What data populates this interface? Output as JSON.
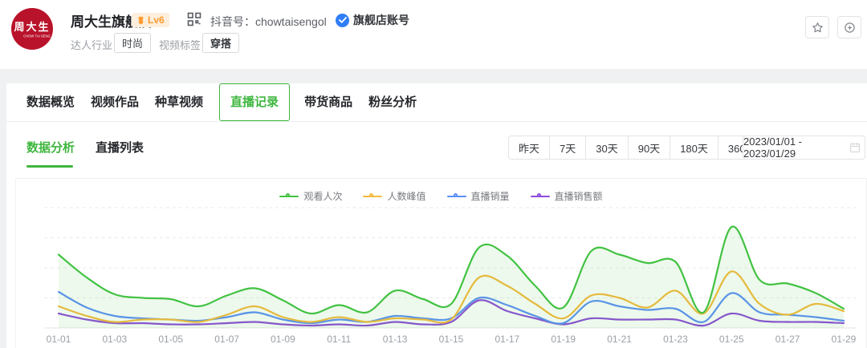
{
  "theme": {
    "accent_green": "#3eb63e",
    "brand_red": "#b9122b",
    "badge_orange": "#ff9b2e",
    "badge_orange_bg": "#fdeedd",
    "verified_blue": "#2f7ef7"
  },
  "header": {
    "logo_text": "周大生",
    "logo_subtext": "CHOW TAI SENG",
    "account_name": "周大生旗舰店",
    "level_badge": "Lv6",
    "douyin_id_label": "抖音号：",
    "douyin_id": "chowtaisengol",
    "verified_badge": "旗舰店账号",
    "industry_label": "达人行业",
    "industry_tag": "时尚",
    "video_tag_label": "视频标签",
    "video_tag": "穿搭",
    "icons": [
      "qr-code",
      "verified-check",
      "star",
      "target-plus"
    ]
  },
  "tabs": {
    "items": [
      {
        "label": "数据概览",
        "active": false
      },
      {
        "label": "视频作品",
        "active": false
      },
      {
        "label": "种草视频",
        "active": false
      },
      {
        "label": "直播记录",
        "active": true
      },
      {
        "label": "带货商品",
        "active": false
      },
      {
        "label": "粉丝分析",
        "active": false
      }
    ]
  },
  "subtabs": {
    "items": [
      {
        "label": "数据分析",
        "active": true
      },
      {
        "label": "直播列表",
        "active": false
      }
    ]
  },
  "filters": {
    "quick_ranges": [
      "昨天",
      "7天",
      "30天",
      "90天",
      "180天",
      "360天"
    ],
    "range_text": "2023/01/01  - 2023/01/29",
    "calendar_icon": "calendar"
  },
  "chart_data": {
    "type": "line",
    "title": "",
    "x": [
      "01-01",
      "01-02",
      "01-03",
      "01-04",
      "01-05",
      "01-06",
      "01-07",
      "01-08",
      "01-09",
      "01-10",
      "01-11",
      "01-12",
      "01-13",
      "01-14",
      "01-15",
      "01-16",
      "01-17",
      "01-18",
      "01-19",
      "01-20",
      "01-21",
      "01-22",
      "01-23",
      "01-24",
      "01-25",
      "01-26",
      "01-27",
      "01-28",
      "01-29"
    ],
    "x_tick_labels": [
      "01-01",
      "01-03",
      "01-05",
      "01-07",
      "01-09",
      "01-11",
      "01-13",
      "01-15",
      "01-17",
      "01-19",
      "01-21",
      "01-23",
      "01-25",
      "01-27",
      "01-29"
    ],
    "y_axis": {
      "visible": false,
      "range": [
        0,
        100
      ],
      "unit": "relative % of plot height (no tick labels shown)"
    },
    "grid": "horizontal-dashed",
    "legend_position": "top-center",
    "series": [
      {
        "name": "观看人次",
        "color": "#42c242",
        "area": true,
        "area_fill": "rgba(82,196,70,0.10)",
        "values": [
          61,
          42,
          28,
          25,
          24,
          18,
          27,
          33,
          23,
          12,
          19,
          13,
          31,
          24,
          20,
          67,
          60,
          35,
          17,
          64,
          61,
          54,
          55,
          13,
          84,
          40,
          37,
          29,
          16
        ]
      },
      {
        "name": "人数峰值",
        "color": "#f6b93d",
        "area": false,
        "area_fill": "",
        "values": [
          18,
          10,
          5,
          7,
          7,
          5,
          11,
          18,
          9,
          5,
          9,
          5,
          8,
          7,
          7,
          42,
          35,
          20,
          8,
          27,
          25,
          17,
          31,
          12,
          47,
          20,
          11,
          20,
          14
        ]
      },
      {
        "name": "直播销量",
        "color": "#5b8ff9",
        "area": false,
        "area_fill": "",
        "values": [
          30,
          17,
          10,
          8,
          7,
          6,
          9,
          13,
          7,
          4,
          7,
          5,
          10,
          8,
          8,
          25,
          19,
          10,
          4,
          22,
          18,
          15,
          16,
          5,
          29,
          13,
          11,
          9,
          6
        ]
      },
      {
        "name": "直播销售额",
        "color": "#8d4bdb",
        "area": false,
        "area_fill": "",
        "values": [
          12,
          7,
          4,
          4,
          3,
          3,
          4,
          5,
          3,
          2,
          3,
          2,
          5,
          3,
          5,
          23,
          14,
          8,
          3,
          8,
          7,
          7,
          7,
          2,
          12,
          6,
          5,
          5,
          4
        ]
      }
    ]
  }
}
